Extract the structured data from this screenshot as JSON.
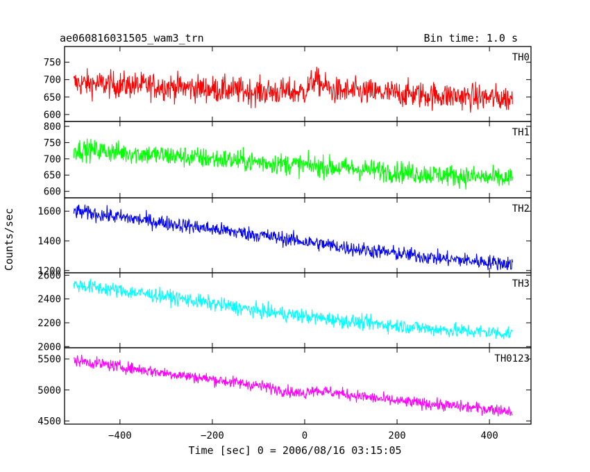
{
  "chart_data": {
    "type": "line",
    "title": "ae060816031505_wam3_trn",
    "bin_time": "Bin time: 1.0 s",
    "xlabel": "Time [sec] 0 = 2006/08/16 03:15:05",
    "ylabel": "Counts/sec",
    "xlim": [
      -520,
      490
    ],
    "x_ticks": [
      -400,
      -200,
      0,
      200,
      400
    ],
    "x_range_data": [
      -500,
      450
    ],
    "grid": false,
    "panels": [
      {
        "name": "TH0",
        "color": "#ff0000",
        "ylim": [
          580,
          795
        ],
        "yticks": [
          600,
          650,
          700,
          750
        ],
        "trend": [
          {
            "x": -500,
            "y": 690
          },
          {
            "x": -300,
            "y": 680
          },
          {
            "x": -100,
            "y": 665
          },
          {
            "x": 0,
            "y": 665
          },
          {
            "x": 20,
            "y": 700
          },
          {
            "x": 60,
            "y": 668
          },
          {
            "x": 200,
            "y": 660
          },
          {
            "x": 450,
            "y": 645
          }
        ],
        "noise": 35
      },
      {
        "name": "TH1",
        "color": "#00ff00",
        "ylim": [
          580,
          815
        ],
        "yticks": [
          600,
          650,
          700,
          750,
          800
        ],
        "trend": [
          {
            "x": -500,
            "y": 730
          },
          {
            "x": -300,
            "y": 710
          },
          {
            "x": -100,
            "y": 690
          },
          {
            "x": 100,
            "y": 670
          },
          {
            "x": 300,
            "y": 650
          },
          {
            "x": 450,
            "y": 638
          }
        ],
        "noise": 30
      },
      {
        "name": "TH2",
        "color": "#0000ff",
        "ylim": [
          1185,
          1690
        ],
        "yticks": [
          1200,
          1400,
          1600
        ],
        "trend": [
          {
            "x": -500,
            "y": 1600
          },
          {
            "x": -300,
            "y": 1520
          },
          {
            "x": -100,
            "y": 1440
          },
          {
            "x": 100,
            "y": 1350
          },
          {
            "x": 300,
            "y": 1280
          },
          {
            "x": 450,
            "y": 1245
          }
        ],
        "noise": 45
      },
      {
        "name": "TH3",
        "color": "#00ffff",
        "ylim": [
          1990,
          2620
        ],
        "yticks": [
          2000,
          2200,
          2400,
          2600
        ],
        "trend": [
          {
            "x": -500,
            "y": 2520
          },
          {
            "x": -300,
            "y": 2420
          },
          {
            "x": -100,
            "y": 2300
          },
          {
            "x": 100,
            "y": 2210
          },
          {
            "x": 300,
            "y": 2140
          },
          {
            "x": 450,
            "y": 2110
          }
        ],
        "noise": 55
      },
      {
        "name": "TH0123",
        "color": "#ff00ff",
        "ylim": [
          4450,
          5680
        ],
        "yticks": [
          4500,
          5000,
          5500
        ],
        "trend": [
          {
            "x": -500,
            "y": 5480
          },
          {
            "x": -300,
            "y": 5270
          },
          {
            "x": -100,
            "y": 5070
          },
          {
            "x": 0,
            "y": 4930
          },
          {
            "x": 10,
            "y": 5010
          },
          {
            "x": 200,
            "y": 4820
          },
          {
            "x": 450,
            "y": 4660
          }
        ],
        "noise": 85
      }
    ]
  }
}
